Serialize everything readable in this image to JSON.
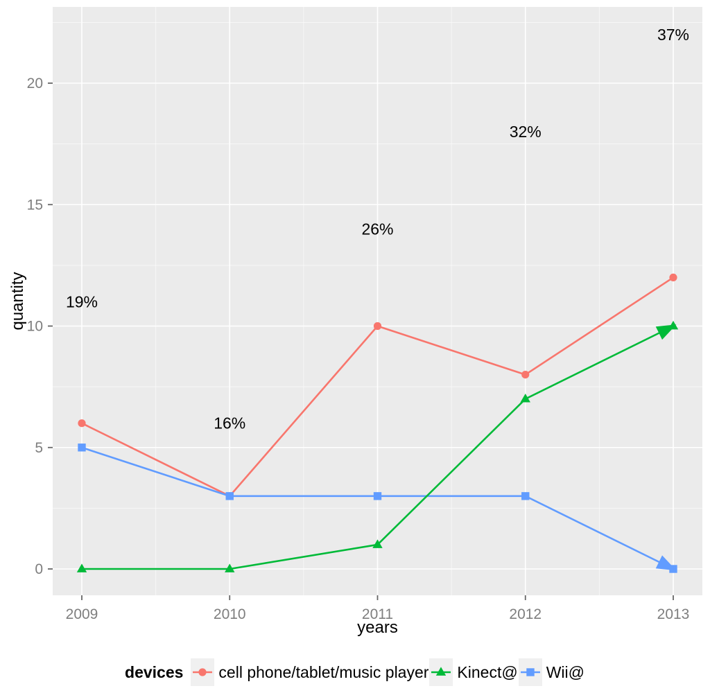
{
  "chart_data": {
    "type": "line",
    "title": "",
    "xlabel": "years",
    "ylabel": "quantity",
    "categories": [
      2009,
      2010,
      2011,
      2012,
      2013
    ],
    "x_tick_labels": [
      "2009",
      "2010",
      "2011",
      "2012",
      "2013"
    ],
    "y_ticks": [
      0,
      5,
      10,
      15,
      20
    ],
    "y_tick_labels": [
      "0",
      "5",
      "10",
      "15",
      "20"
    ],
    "ylim": [
      -1.1,
      23.2
    ],
    "xlim": [
      2008.8,
      2013.2
    ],
    "grid": "major-white, minor-white on gray panel",
    "legend_position": "bottom",
    "panel_bg": "#EBEBEB",
    "grid_major_color": "#FFFFFF",
    "grid_minor_color": "#F5F5F5",
    "tick_label_color": "#7E7E7E",
    "text_color": "#000000",
    "series": [
      {
        "name": "cell phone/tablet/music player",
        "color": "#F8766D",
        "marker": "circle",
        "arrow_end": false,
        "z": 1,
        "values": [
          6,
          3,
          10,
          8,
          12
        ]
      },
      {
        "name": "Kinect@",
        "color": "#00BA38",
        "marker": "triangle",
        "arrow_end": true,
        "z": 3,
        "values": [
          0,
          0,
          1,
          7,
          10
        ]
      },
      {
        "name": "Wii@",
        "color": "#619CFF",
        "marker": "square",
        "arrow_end": true,
        "z": 2,
        "values": [
          5,
          3,
          3,
          3,
          0
        ]
      }
    ],
    "annotations": [
      {
        "x": 2009,
        "y": 11,
        "label": "19%"
      },
      {
        "x": 2010,
        "y": 6,
        "label": "16%"
      },
      {
        "x": 2011,
        "y": 14,
        "label": "26%"
      },
      {
        "x": 2012,
        "y": 18,
        "label": "32%"
      },
      {
        "x": 2013,
        "y": 22,
        "label": "37%"
      }
    ],
    "legend": {
      "title": "devices"
    }
  }
}
